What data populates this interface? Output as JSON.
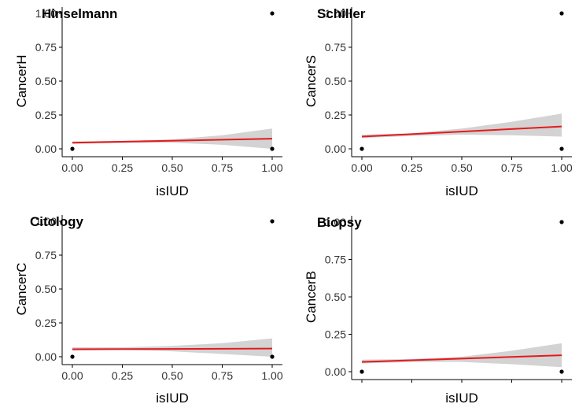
{
  "colors": {
    "line": "#e41a1c",
    "ribbon": "#d3d3d3",
    "point": "#000000",
    "axis": "#000000"
  },
  "chart_data": [
    {
      "type": "scatter",
      "title": "Hinselmann",
      "xlabel": "isIUD",
      "ylabel": "CancerH",
      "xlim": [
        0,
        1
      ],
      "ylim": [
        0,
        1
      ],
      "x_ticks": [
        "0.00",
        "0.25",
        "0.50",
        "0.75",
        "1.00"
      ],
      "y_ticks": [
        "0.00",
        "0.25",
        "0.50",
        "0.75",
        "1.00"
      ],
      "show_x_tick_labels": true,
      "points": [
        [
          0,
          0
        ],
        [
          1,
          0
        ],
        [
          1,
          1
        ]
      ],
      "fit": {
        "x": [
          0,
          1
        ],
        "y": [
          0.045,
          0.075
        ]
      },
      "ribbon": {
        "x": [
          0,
          0.25,
          0.5,
          0.75,
          1
        ],
        "lower": [
          0.037,
          0.043,
          0.045,
          0.03,
          0.0
        ],
        "upper": [
          0.055,
          0.058,
          0.07,
          0.1,
          0.15
        ]
      }
    },
    {
      "type": "scatter",
      "title": "Schiller",
      "xlabel": "isIUD",
      "ylabel": "CancerS",
      "xlim": [
        0,
        1
      ],
      "ylim": [
        0,
        1
      ],
      "x_ticks": [
        "0.00",
        "0.25",
        "0.50",
        "0.75",
        "1.00"
      ],
      "y_ticks": [
        "0.00",
        "0.25",
        "0.50",
        "0.75",
        "1.00"
      ],
      "show_x_tick_labels": true,
      "points": [
        [
          0,
          0
        ],
        [
          1,
          0
        ],
        [
          1,
          1
        ]
      ],
      "fit": {
        "x": [
          0,
          1
        ],
        "y": [
          0.09,
          0.165
        ]
      },
      "ribbon": {
        "x": [
          0,
          0.25,
          0.5,
          0.75,
          1
        ],
        "lower": [
          0.08,
          0.095,
          0.105,
          0.1,
          0.09
        ],
        "upper": [
          0.105,
          0.115,
          0.15,
          0.2,
          0.26
        ]
      }
    },
    {
      "type": "scatter",
      "title": "Citology",
      "xlabel": "isIUD",
      "ylabel": "CancerC",
      "xlim": [
        0,
        1
      ],
      "ylim": [
        0,
        1
      ],
      "x_ticks": [
        "0.00",
        "0.25",
        "0.50",
        "0.75",
        "1.00"
      ],
      "y_ticks": [
        "0.00",
        "0.25",
        "0.50",
        "0.75",
        "1.00"
      ],
      "show_x_tick_labels": true,
      "points": [
        [
          0,
          0
        ],
        [
          1,
          0
        ],
        [
          1,
          1
        ]
      ],
      "fit": {
        "x": [
          0,
          1
        ],
        "y": [
          0.055,
          0.06
        ]
      },
      "ribbon": {
        "x": [
          0,
          0.25,
          0.5,
          0.75,
          1
        ],
        "lower": [
          0.045,
          0.05,
          0.04,
          0.02,
          0.0
        ],
        "upper": [
          0.07,
          0.07,
          0.08,
          0.1,
          0.135
        ]
      }
    },
    {
      "type": "scatter",
      "title": "Biopsy",
      "xlabel": "isIUD",
      "ylabel": "CancerB",
      "xlim": [
        0,
        1
      ],
      "ylim": [
        0,
        1
      ],
      "x_ticks": [
        "",
        "",
        "",
        "",
        ""
      ],
      "y_ticks": [
        "0.00",
        "0.25",
        "0.50",
        "0.75",
        "1.00"
      ],
      "show_x_tick_labels": false,
      "points": [
        [
          0,
          0
        ],
        [
          1,
          0
        ],
        [
          1,
          1
        ]
      ],
      "fit": {
        "x": [
          0,
          1
        ],
        "y": [
          0.065,
          0.11
        ]
      },
      "ribbon": {
        "x": [
          0,
          0.25,
          0.5,
          0.75,
          1
        ],
        "lower": [
          0.055,
          0.065,
          0.065,
          0.05,
          0.03
        ],
        "upper": [
          0.08,
          0.085,
          0.1,
          0.14,
          0.19
        ]
      }
    }
  ]
}
